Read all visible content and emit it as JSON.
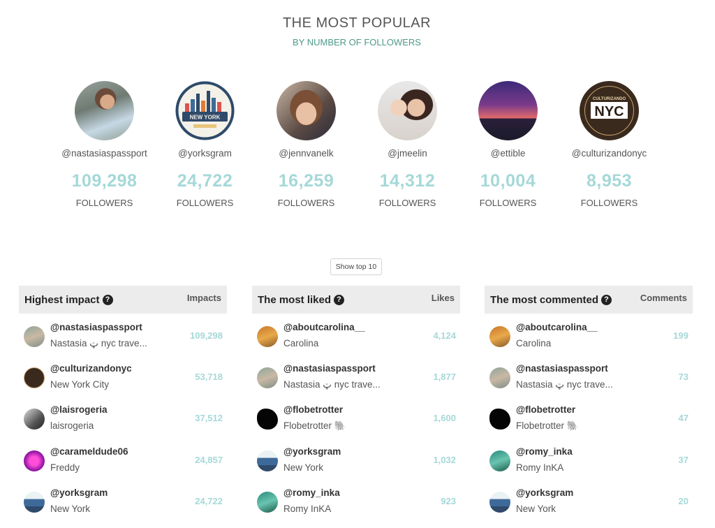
{
  "header": {
    "title": "THE MOST POPULAR",
    "subtitle": "BY NUMBER OF FOLLOWERS"
  },
  "top_accounts": [
    {
      "handle": "@nastasiaspassport",
      "count": "109,298",
      "label": "FOLLOWERS"
    },
    {
      "handle": "@yorksgram",
      "count": "24,722",
      "label": "FOLLOWERS"
    },
    {
      "handle": "@jennvanelk",
      "count": "16,259",
      "label": "FOLLOWERS"
    },
    {
      "handle": "@jmeelin",
      "count": "14,312",
      "label": "FOLLOWERS"
    },
    {
      "handle": "@ettible",
      "count": "10,004",
      "label": "FOLLOWERS"
    },
    {
      "handle": "@culturizandonyc",
      "count": "8,953",
      "label": "FOLLOWERS"
    }
  ],
  "avatar_texts": {
    "new_york": "NEW YORK",
    "nyc": "NYC",
    "culturizando": "CULTURIZANDO"
  },
  "show_button": "Show top 10",
  "panels": [
    {
      "title": "Highest impact",
      "column": "Impacts",
      "rows": [
        {
          "handle": "@nastasiaspassport",
          "name": "Nastasia ټ nyc trave...",
          "value": "109,298"
        },
        {
          "handle": "@culturizandonyc",
          "name": "New York City",
          "value": "53,718"
        },
        {
          "handle": "@laisrogeria",
          "name": "laisrogeria",
          "value": "37,512"
        },
        {
          "handle": "@carameldude06",
          "name": "Freddy",
          "value": "24,857"
        },
        {
          "handle": "@yorksgram",
          "name": "New York",
          "value": "24,722"
        }
      ]
    },
    {
      "title": "The most liked",
      "column": "Likes",
      "rows": [
        {
          "handle": "@aboutcarolina__",
          "name": "Carolina",
          "value": "4,124"
        },
        {
          "handle": "@nastasiaspassport",
          "name": "Nastasia ټ nyc trave...",
          "value": "1,877"
        },
        {
          "handle": "@flobetrotter",
          "name": "Flobetrotter 🐘",
          "value": "1,600"
        },
        {
          "handle": "@yorksgram",
          "name": "New York",
          "value": "1,032"
        },
        {
          "handle": "@romy_inka",
          "name": "Romy InKA",
          "value": "923"
        }
      ]
    },
    {
      "title": "The most commented",
      "column": "Comments",
      "rows": [
        {
          "handle": "@aboutcarolina__",
          "name": "Carolina",
          "value": "199"
        },
        {
          "handle": "@nastasiaspassport",
          "name": "Nastasia ټ nyc trave...",
          "value": "73"
        },
        {
          "handle": "@flobetrotter",
          "name": "Flobetrotter 🐘",
          "value": "47"
        },
        {
          "handle": "@romy_inka",
          "name": "Romy InKA",
          "value": "37"
        },
        {
          "handle": "@yorksgram",
          "name": "New York",
          "value": "20"
        }
      ]
    }
  ],
  "colors": {
    "accent": "#4e9a8a",
    "count": "#a6d8d8",
    "header_bg": "#ececec"
  }
}
